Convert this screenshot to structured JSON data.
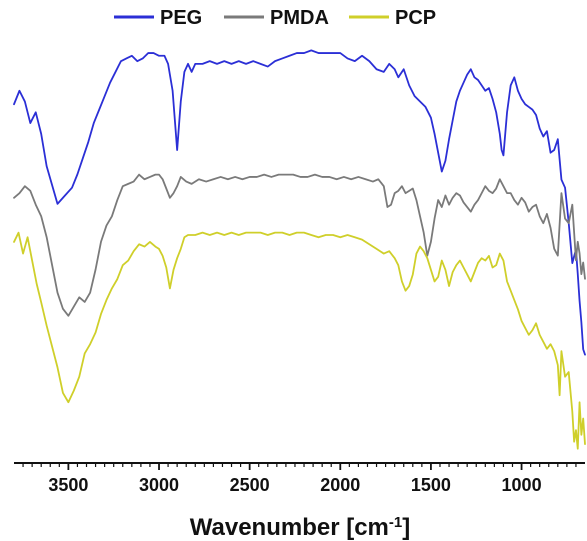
{
  "chart_data": {
    "type": "line",
    "title": "",
    "xlabel": "Wavenumber [cm-1]",
    "ylabel": "",
    "xlim": [
      3800,
      650
    ],
    "xreverse": true,
    "ticks": [
      3500,
      3000,
      2500,
      2000,
      1500,
      1000
    ],
    "tick_labels": [
      "3500",
      "3000",
      "2500",
      "2000",
      "1500",
      "1000"
    ],
    "grid": false,
    "legend": {
      "placement": "top-center",
      "items": [
        "PEG",
        "PMDA",
        "PCP"
      ]
    },
    "series": [
      {
        "name": "PEG",
        "color": "#2b2fd6",
        "x": [
          3800,
          3770,
          3740,
          3710,
          3680,
          3650,
          3620,
          3590,
          3560,
          3520,
          3480,
          3450,
          3420,
          3390,
          3360,
          3330,
          3300,
          3270,
          3240,
          3210,
          3180,
          3150,
          3120,
          3090,
          3060,
          3030,
          3000,
          2970,
          2950,
          2925,
          2900,
          2880,
          2860,
          2840,
          2820,
          2800,
          2760,
          2720,
          2680,
          2640,
          2600,
          2560,
          2520,
          2480,
          2440,
          2400,
          2360,
          2320,
          2280,
          2240,
          2200,
          2160,
          2120,
          2080,
          2040,
          2000,
          1960,
          1920,
          1880,
          1840,
          1800,
          1760,
          1730,
          1700,
          1680,
          1650,
          1620,
          1590,
          1560,
          1530,
          1500,
          1480,
          1460,
          1440,
          1420,
          1400,
          1380,
          1360,
          1340,
          1320,
          1300,
          1280,
          1260,
          1240,
          1220,
          1200,
          1180,
          1160,
          1140,
          1120,
          1110,
          1100,
          1090,
          1080,
          1060,
          1040,
          1020,
          1000,
          980,
          960,
          940,
          920,
          900,
          880,
          860,
          840,
          820,
          800,
          780,
          760,
          740,
          720,
          700,
          690,
          680,
          670,
          660,
          650
        ],
        "y": [
          0.83,
          0.88,
          0.84,
          0.76,
          0.8,
          0.72,
          0.6,
          0.53,
          0.46,
          0.49,
          0.52,
          0.57,
          0.63,
          0.69,
          0.76,
          0.81,
          0.86,
          0.91,
          0.95,
          0.99,
          1.0,
          1.01,
          0.99,
          1.0,
          1.02,
          1.02,
          1.01,
          1.01,
          0.98,
          0.88,
          0.66,
          0.84,
          0.95,
          0.98,
          0.95,
          0.98,
          0.98,
          0.99,
          0.98,
          0.99,
          0.98,
          0.99,
          0.98,
          0.99,
          0.98,
          0.97,
          0.99,
          1.0,
          1.01,
          1.02,
          1.02,
          1.03,
          1.02,
          1.02,
          1.02,
          1.02,
          1.0,
          0.99,
          1.01,
          0.99,
          0.96,
          0.95,
          0.98,
          0.96,
          0.93,
          0.96,
          0.9,
          0.86,
          0.84,
          0.82,
          0.78,
          0.72,
          0.65,
          0.58,
          0.62,
          0.7,
          0.77,
          0.84,
          0.88,
          0.91,
          0.94,
          0.96,
          0.93,
          0.92,
          0.9,
          0.88,
          0.89,
          0.85,
          0.8,
          0.72,
          0.66,
          0.64,
          0.72,
          0.8,
          0.9,
          0.93,
          0.88,
          0.85,
          0.83,
          0.82,
          0.81,
          0.79,
          0.74,
          0.71,
          0.73,
          0.65,
          0.66,
          0.7,
          0.55,
          0.52,
          0.39,
          0.24,
          0.29,
          0.2,
          0.1,
          0.02,
          -0.08,
          -0.1
        ],
        "y_note_units": "relative"
      },
      {
        "name": "PMDA",
        "color": "#7a7a7a",
        "x": [
          3800,
          3770,
          3740,
          3710,
          3680,
          3650,
          3620,
          3590,
          3560,
          3530,
          3500,
          3470,
          3440,
          3410,
          3380,
          3350,
          3320,
          3290,
          3260,
          3230,
          3200,
          3170,
          3140,
          3110,
          3080,
          3050,
          3020,
          3000,
          2980,
          2960,
          2940,
          2920,
          2900,
          2880,
          2850,
          2820,
          2780,
          2740,
          2700,
          2660,
          2620,
          2580,
          2540,
          2500,
          2460,
          2420,
          2380,
          2340,
          2300,
          2260,
          2220,
          2180,
          2140,
          2100,
          2060,
          2020,
          1980,
          1940,
          1900,
          1860,
          1820,
          1790,
          1760,
          1740,
          1720,
          1700,
          1680,
          1660,
          1640,
          1620,
          1600,
          1580,
          1560,
          1540,
          1520,
          1500,
          1480,
          1460,
          1440,
          1420,
          1400,
          1380,
          1360,
          1340,
          1320,
          1300,
          1280,
          1260,
          1240,
          1220,
          1200,
          1180,
          1160,
          1140,
          1120,
          1100,
          1080,
          1060,
          1040,
          1020,
          1000,
          980,
          960,
          940,
          920,
          900,
          880,
          860,
          840,
          820,
          800,
          780,
          760,
          740,
          720,
          700,
          690,
          680,
          670,
          660,
          650
        ],
        "y": [
          0.53,
          0.55,
          0.58,
          0.56,
          0.5,
          0.45,
          0.36,
          0.24,
          0.12,
          0.05,
          0.02,
          0.06,
          0.1,
          0.08,
          0.12,
          0.22,
          0.34,
          0.41,
          0.45,
          0.52,
          0.58,
          0.59,
          0.6,
          0.63,
          0.61,
          0.62,
          0.63,
          0.63,
          0.61,
          0.57,
          0.53,
          0.55,
          0.58,
          0.62,
          0.6,
          0.59,
          0.61,
          0.6,
          0.61,
          0.62,
          0.61,
          0.62,
          0.61,
          0.62,
          0.62,
          0.63,
          0.62,
          0.63,
          0.63,
          0.63,
          0.62,
          0.62,
          0.63,
          0.62,
          0.62,
          0.61,
          0.62,
          0.61,
          0.62,
          0.61,
          0.6,
          0.61,
          0.58,
          0.49,
          0.5,
          0.55,
          0.56,
          0.58,
          0.55,
          0.56,
          0.57,
          0.52,
          0.45,
          0.38,
          0.28,
          0.34,
          0.44,
          0.52,
          0.49,
          0.54,
          0.5,
          0.53,
          0.55,
          0.54,
          0.51,
          0.49,
          0.47,
          0.5,
          0.52,
          0.55,
          0.58,
          0.56,
          0.55,
          0.57,
          0.61,
          0.58,
          0.55,
          0.55,
          0.52,
          0.5,
          0.53,
          0.51,
          0.47,
          0.49,
          0.5,
          0.45,
          0.42,
          0.46,
          0.4,
          0.31,
          0.28,
          0.55,
          0.44,
          0.42,
          0.5,
          0.26,
          0.34,
          0.29,
          0.2,
          0.25,
          0.18
        ],
        "y_note_units": "relative"
      },
      {
        "name": "PCP",
        "color": "#cfcf2a",
        "x": [
          3800,
          3775,
          3750,
          3725,
          3700,
          3675,
          3650,
          3620,
          3590,
          3560,
          3530,
          3500,
          3470,
          3440,
          3410,
          3380,
          3350,
          3320,
          3290,
          3260,
          3230,
          3200,
          3170,
          3140,
          3110,
          3080,
          3050,
          3020,
          3000,
          2980,
          2960,
          2940,
          2920,
          2900,
          2880,
          2860,
          2840,
          2800,
          2760,
          2720,
          2680,
          2640,
          2600,
          2560,
          2520,
          2480,
          2440,
          2400,
          2360,
          2320,
          2280,
          2240,
          2200,
          2160,
          2120,
          2080,
          2040,
          2000,
          1960,
          1920,
          1880,
          1840,
          1800,
          1760,
          1730,
          1700,
          1680,
          1660,
          1640,
          1620,
          1600,
          1580,
          1560,
          1540,
          1520,
          1500,
          1480,
          1460,
          1440,
          1420,
          1400,
          1380,
          1360,
          1340,
          1320,
          1300,
          1280,
          1260,
          1240,
          1220,
          1200,
          1180,
          1160,
          1140,
          1120,
          1100,
          1080,
          1060,
          1040,
          1020,
          1000,
          980,
          960,
          940,
          920,
          900,
          880,
          860,
          840,
          820,
          800,
          790,
          780,
          760,
          740,
          720,
          710,
          700,
          690,
          680,
          670,
          660,
          650
        ],
        "y": [
          0.38,
          0.42,
          0.33,
          0.4,
          0.3,
          0.2,
          0.12,
          0.02,
          -0.07,
          -0.16,
          -0.27,
          -0.31,
          -0.26,
          -0.2,
          -0.1,
          -0.06,
          -0.01,
          0.07,
          0.13,
          0.18,
          0.22,
          0.28,
          0.3,
          0.34,
          0.37,
          0.36,
          0.38,
          0.36,
          0.35,
          0.32,
          0.27,
          0.18,
          0.26,
          0.31,
          0.35,
          0.4,
          0.41,
          0.41,
          0.42,
          0.41,
          0.42,
          0.41,
          0.42,
          0.41,
          0.42,
          0.42,
          0.42,
          0.41,
          0.42,
          0.42,
          0.41,
          0.42,
          0.42,
          0.41,
          0.4,
          0.41,
          0.41,
          0.4,
          0.41,
          0.4,
          0.39,
          0.37,
          0.35,
          0.33,
          0.34,
          0.31,
          0.28,
          0.21,
          0.17,
          0.19,
          0.24,
          0.33,
          0.36,
          0.34,
          0.31,
          0.26,
          0.21,
          0.23,
          0.3,
          0.26,
          0.19,
          0.25,
          0.28,
          0.3,
          0.27,
          0.24,
          0.21,
          0.25,
          0.29,
          0.31,
          0.3,
          0.32,
          0.27,
          0.28,
          0.33,
          0.3,
          0.21,
          0.17,
          0.13,
          0.09,
          0.04,
          0.01,
          -0.02,
          0.0,
          0.03,
          -0.02,
          -0.05,
          -0.08,
          -0.06,
          -0.09,
          -0.15,
          -0.28,
          -0.09,
          -0.2,
          -0.18,
          -0.35,
          -0.48,
          -0.43,
          -0.51,
          -0.31,
          -0.45,
          -0.38,
          -0.49
        ],
        "y_note_units": "relative"
      }
    ]
  }
}
